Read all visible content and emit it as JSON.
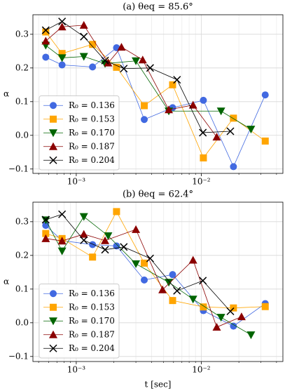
{
  "chart_data": [
    {
      "type": "line",
      "title": "(a) θeq = 85.6°",
      "y_label": "α",
      "xscale": "log",
      "grid": true,
      "legend": "lower left",
      "xlim": [
        0.00045,
        0.045
      ],
      "ylim": [
        -0.113,
        0.358
      ],
      "xticks": [
        {
          "value": 0.001,
          "label": "10⁻³"
        },
        {
          "value": 0.01,
          "label": "10⁻²"
        }
      ],
      "xminorticks": [
        0.0005,
        0.0006,
        0.0007,
        0.0008,
        0.0009,
        0.002,
        0.003,
        0.004,
        0.005,
        0.006,
        0.007,
        0.008,
        0.009,
        0.02,
        0.03,
        0.04
      ],
      "yticks": [
        {
          "value": -0.1,
          "label": "−0.1"
        },
        {
          "value": 0,
          "label": "0.0"
        },
        0.1,
        0.2,
        0.3
      ],
      "series": [
        {
          "name": "R₀ = 0.136",
          "color": "#4169e1",
          "marker": "circle",
          "x": [
            0.00057,
            0.00077,
            0.00135,
            0.0021,
            0.0035,
            0.0059,
            0.0104,
            0.0181,
            0.0325
          ],
          "values": [
            0.232,
            0.209,
            0.203,
            0.26,
            0.047,
            0.082,
            0.104,
            -0.093,
            0.12
          ]
        },
        {
          "name": "R₀ = 0.153",
          "color": "#ffa500",
          "marker": "square",
          "x": [
            0.00057,
            0.00077,
            0.00135,
            0.0021,
            0.0035,
            0.0059,
            0.0104,
            0.0181,
            0.0325
          ],
          "values": [
            0.307,
            0.243,
            0.27,
            0.202,
            0.088,
            0.15,
            -0.067,
            0.051,
            -0.017
          ]
        },
        {
          "name": "R₀ = 0.170",
          "color": "#006400",
          "marker": "tri-down",
          "x": [
            0.00057,
            0.00077,
            0.00115,
            0.0017,
            0.003,
            0.0055,
            0.0144,
            0.025
          ],
          "values": [
            0.267,
            0.23,
            0.234,
            0.213,
            0.221,
            0.072,
            0.072,
            0.018
          ]
        },
        {
          "name": "R₀ = 0.187",
          "color": "#8b0000",
          "marker": "tri-up",
          "x": [
            0.00057,
            0.00077,
            0.00115,
            0.0018,
            0.0023,
            0.0034,
            0.0055,
            0.0086,
            0.0133
          ],
          "values": [
            0.28,
            0.322,
            0.327,
            0.215,
            0.262,
            0.224,
            0.076,
            0.09,
            -0.005
          ]
        },
        {
          "name": "R₀ = 0.204",
          "color": "#000000",
          "marker": "x",
          "x": [
            0.00057,
            0.00077,
            0.00115,
            0.0017,
            0.0024,
            0.0039,
            0.0064,
            0.0103,
            0.0171
          ],
          "values": [
            0.312,
            0.338,
            0.293,
            0.222,
            0.198,
            0.2,
            0.165,
            0.008,
            0.012
          ]
        }
      ]
    },
    {
      "type": "line",
      "title": "(b) θeq = 62.4°",
      "y_label": "α",
      "x_label": "t [sec]",
      "xscale": "log",
      "grid": true,
      "legend": "lower left",
      "xlim": [
        0.00045,
        0.045
      ],
      "ylim": [
        -0.115,
        0.358
      ],
      "xticks": [
        {
          "value": 0.001,
          "label": "10⁻³"
        },
        {
          "value": 0.01,
          "label": "10⁻²"
        }
      ],
      "xminorticks": [
        0.0005,
        0.0006,
        0.0007,
        0.0008,
        0.0009,
        0.002,
        0.003,
        0.004,
        0.005,
        0.006,
        0.007,
        0.008,
        0.009,
        0.02,
        0.03,
        0.04
      ],
      "yticks": [
        {
          "value": -0.1,
          "label": "−0.1"
        },
        {
          "value": 0,
          "label": "0.0"
        },
        0.1,
        0.2,
        0.3
      ],
      "series": [
        {
          "name": "R₀ = 0.136",
          "color": "#4169e1",
          "marker": "circle",
          "x": [
            0.00057,
            0.00077,
            0.00135,
            0.0021,
            0.0035,
            0.0059,
            0.0104,
            0.0181,
            0.0325
          ],
          "values": [
            0.289,
            0.244,
            0.232,
            0.228,
            0.127,
            0.143,
            0.036,
            -0.01,
            0.057
          ]
        },
        {
          "name": "R₀ = 0.153",
          "color": "#ffa500",
          "marker": "square",
          "x": [
            0.00057,
            0.00077,
            0.00135,
            0.0021,
            0.0035,
            0.0059,
            0.0104,
            0.0181,
            0.0325
          ],
          "values": [
            0.265,
            0.25,
            0.195,
            0.33,
            0.177,
            0.066,
            0.047,
            0.044,
            0.048
          ]
        },
        {
          "name": "R₀ = 0.170",
          "color": "#006400",
          "marker": "tri-down",
          "x": [
            0.00057,
            0.00077,
            0.00115,
            0.0018,
            0.003,
            0.0055,
            0.0086,
            0.0144,
            0.025
          ],
          "values": [
            0.305,
            0.213,
            0.315,
            0.258,
            0.175,
            0.12,
            0.07,
            0.016,
            -0.036
          ]
        },
        {
          "name": "R₀ = 0.187",
          "color": "#8b0000",
          "marker": "tri-up",
          "x": [
            0.00057,
            0.00077,
            0.00115,
            0.0017,
            0.003,
            0.0049,
            0.0086,
            0.0133,
            0.021
          ],
          "values": [
            0.25,
            0.243,
            0.263,
            0.244,
            0.277,
            0.098,
            0.186,
            -0.013,
            0.018
          ]
        },
        {
          "name": "R₀ = 0.204",
          "color": "#000000",
          "marker": "x",
          "x": [
            0.00057,
            0.00077,
            0.00115,
            0.0017,
            0.0024,
            0.0039,
            0.0064,
            0.0103,
            0.0171
          ],
          "values": [
            0.306,
            0.322,
            0.245,
            0.217,
            0.225,
            0.191,
            0.095,
            0.125,
            0.034
          ]
        }
      ]
    }
  ]
}
